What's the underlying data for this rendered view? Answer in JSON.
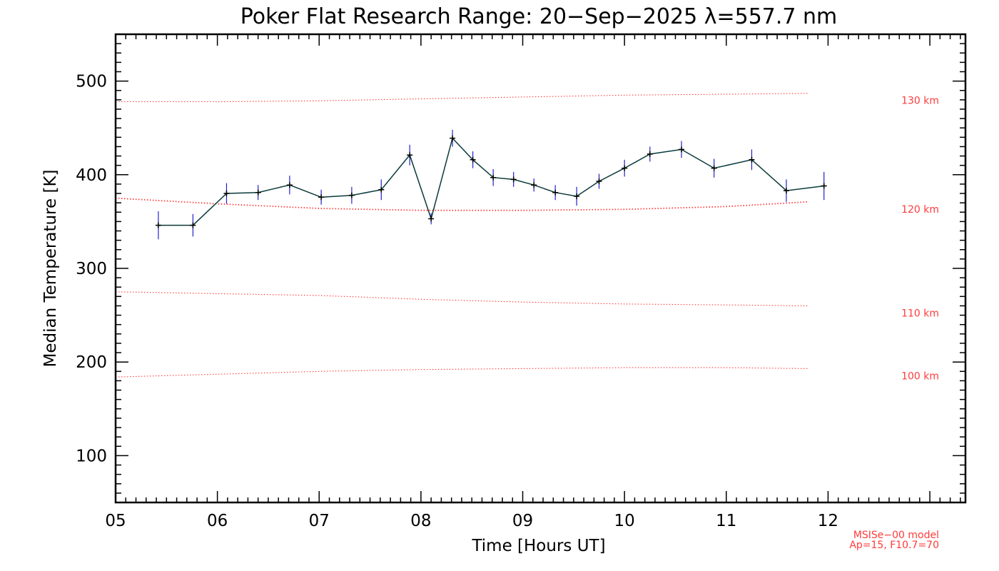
{
  "chart_data": {
    "type": "line",
    "title": "Poker Flat Research Range: 20−Sep−2025 λ=557.7 nm",
    "xlabel": "Time [Hours UT]",
    "ylabel": "Median Temperature [K]",
    "xlim": [
      5.0,
      13.35
    ],
    "ylim": [
      50,
      550
    ],
    "x_ticks": [
      5,
      6,
      7,
      8,
      9,
      10,
      11,
      12
    ],
    "x_tick_labels": [
      "05",
      "06",
      "07",
      "08",
      "09",
      "10",
      "11",
      "12"
    ],
    "y_ticks": [
      100,
      200,
      300,
      400,
      500
    ],
    "y_tick_labels": [
      "100",
      "200",
      "300",
      "400",
      "500"
    ],
    "grid": false,
    "series": [
      {
        "color": "#0a3a3a",
        "error_color": "#2222cc",
        "points": [
          {
            "x": 5.42,
            "y": 346,
            "err": 15
          },
          {
            "x": 5.76,
            "y": 346,
            "err": 12
          },
          {
            "x": 6.09,
            "y": 380,
            "err": 11
          },
          {
            "x": 6.4,
            "y": 381,
            "err": 8
          },
          {
            "x": 6.71,
            "y": 389,
            "err": 10
          },
          {
            "x": 7.02,
            "y": 376,
            "err": 8
          },
          {
            "x": 7.32,
            "y": 378,
            "err": 9
          },
          {
            "x": 7.61,
            "y": 384,
            "err": 11
          },
          {
            "x": 7.89,
            "y": 421,
            "err": 11
          },
          {
            "x": 8.1,
            "y": 353,
            "err": 6
          },
          {
            "x": 8.31,
            "y": 439,
            "err": 9
          },
          {
            "x": 8.51,
            "y": 416,
            "err": 9
          },
          {
            "x": 8.71,
            "y": 397,
            "err": 9
          },
          {
            "x": 8.91,
            "y": 395,
            "err": 8
          },
          {
            "x": 9.11,
            "y": 389,
            "err": 7
          },
          {
            "x": 9.32,
            "y": 381,
            "err": 8
          },
          {
            "x": 9.53,
            "y": 377,
            "err": 10
          },
          {
            "x": 9.75,
            "y": 393,
            "err": 8
          },
          {
            "x": 10.0,
            "y": 407,
            "err": 9
          },
          {
            "x": 10.25,
            "y": 422,
            "err": 8
          },
          {
            "x": 10.56,
            "y": 427,
            "err": 9
          },
          {
            "x": 10.88,
            "y": 407,
            "err": 10
          },
          {
            "x": 11.25,
            "y": 416,
            "err": 11
          },
          {
            "x": 11.59,
            "y": 383,
            "err": 12
          },
          {
            "x": 11.96,
            "y": 388,
            "err": 15
          }
        ]
      }
    ],
    "model_curves": [
      {
        "label": "130 km",
        "color": "#ff3b3b",
        "x": [
          5.0,
          6.0,
          7.0,
          8.0,
          9.0,
          10.0,
          11.0,
          11.8
        ],
        "y": [
          478,
          478,
          479,
          481,
          483,
          485,
          486,
          487
        ]
      },
      {
        "label": "120 km",
        "color": "#ff3b3b",
        "x": [
          5.0,
          6.0,
          7.0,
          8.0,
          9.0,
          10.0,
          11.0,
          11.8
        ],
        "y": [
          375,
          369,
          364,
          362,
          362,
          363,
          366,
          371
        ]
      },
      {
        "label": "110 km",
        "color": "#ff3b3b",
        "x": [
          5.0,
          6.0,
          7.0,
          8.0,
          9.0,
          10.0,
          11.0,
          11.8
        ],
        "y": [
          275,
          273,
          271,
          267,
          264,
          262,
          261,
          260
        ]
      },
      {
        "label": "100 km",
        "color": "#ff3b3b",
        "x": [
          5.0,
          6.0,
          7.0,
          8.0,
          9.0,
          10.0,
          11.0,
          11.8
        ],
        "y": [
          184,
          187,
          190,
          192,
          193,
          194,
          194,
          193
        ]
      }
    ],
    "model_note": [
      "MSISe−00 model",
      "Ap=15, F10.7=70"
    ]
  }
}
